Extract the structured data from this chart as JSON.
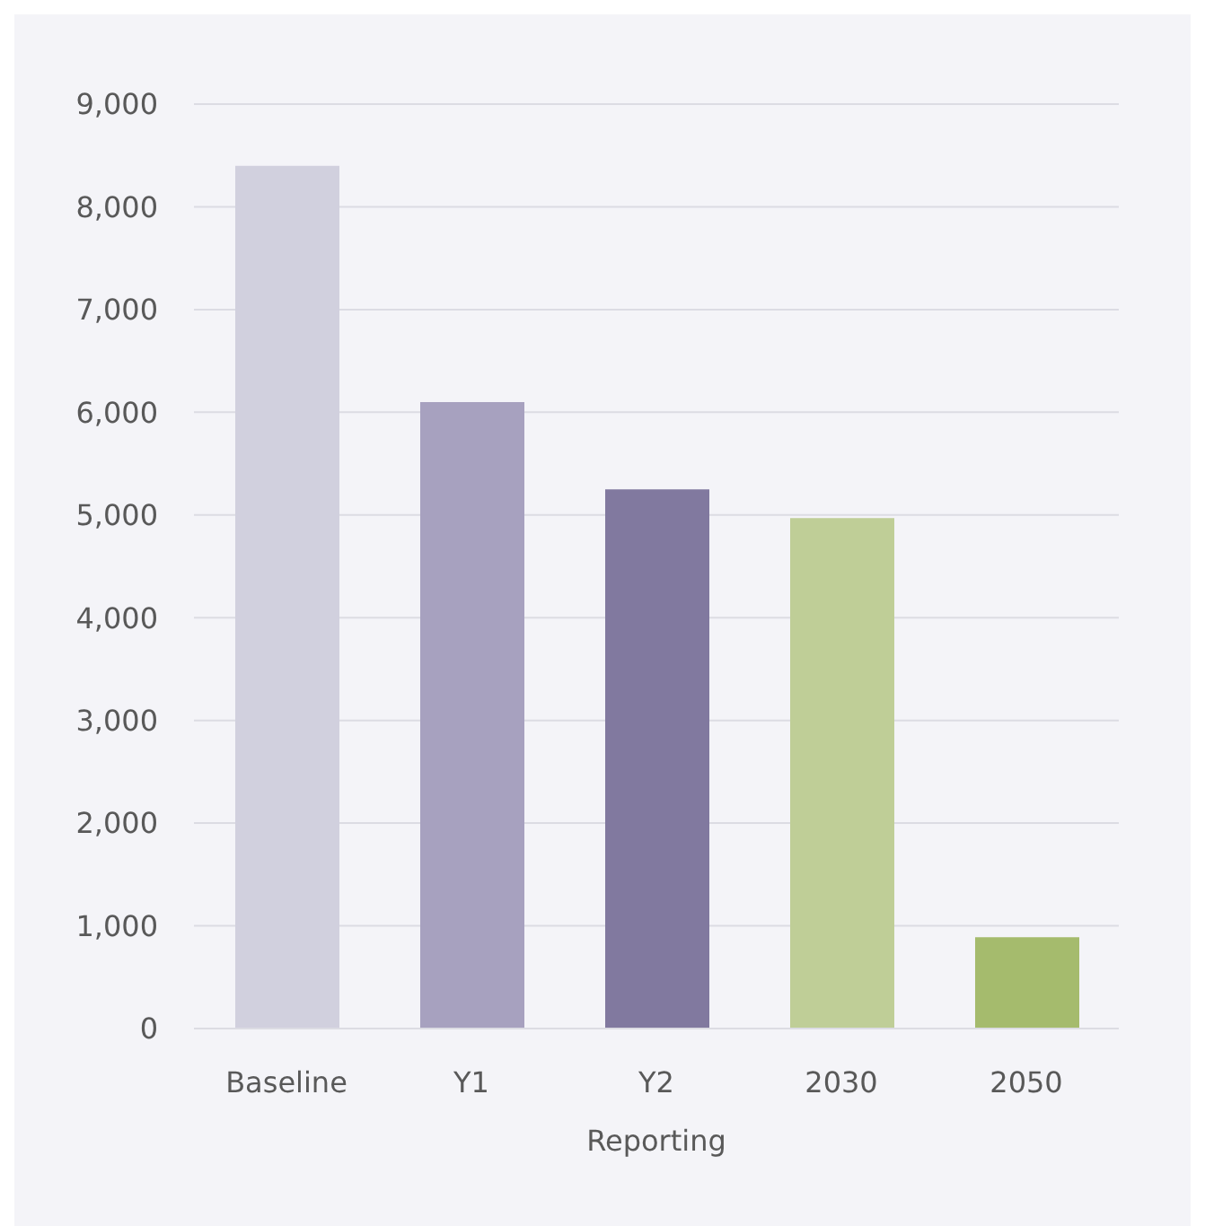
{
  "chart_data": {
    "type": "bar",
    "xlabel": "Reporting",
    "categories": [
      "Baseline",
      "Y1",
      "Y2",
      "2030",
      "2050"
    ],
    "values": [
      8400,
      6100,
      5250,
      4970,
      890
    ],
    "colors": [
      "#d1d0de",
      "#a7a1bf",
      "#81799f",
      "#bfce97",
      "#a5bb6d"
    ],
    "ylim": [
      0,
      9000
    ],
    "yticks": [
      {
        "value": 0,
        "label": "0"
      },
      {
        "value": 1000,
        "label": "1,000"
      },
      {
        "value": 2000,
        "label": "2,000"
      },
      {
        "value": 3000,
        "label": "3,000"
      },
      {
        "value": 4000,
        "label": "4,000"
      },
      {
        "value": 5000,
        "label": "5,000"
      },
      {
        "value": 6000,
        "label": "6,000"
      },
      {
        "value": 7000,
        "label": "7,000"
      },
      {
        "value": 8000,
        "label": "8,000"
      },
      {
        "value": 9000,
        "label": "9,000"
      }
    ],
    "grid": "y"
  }
}
